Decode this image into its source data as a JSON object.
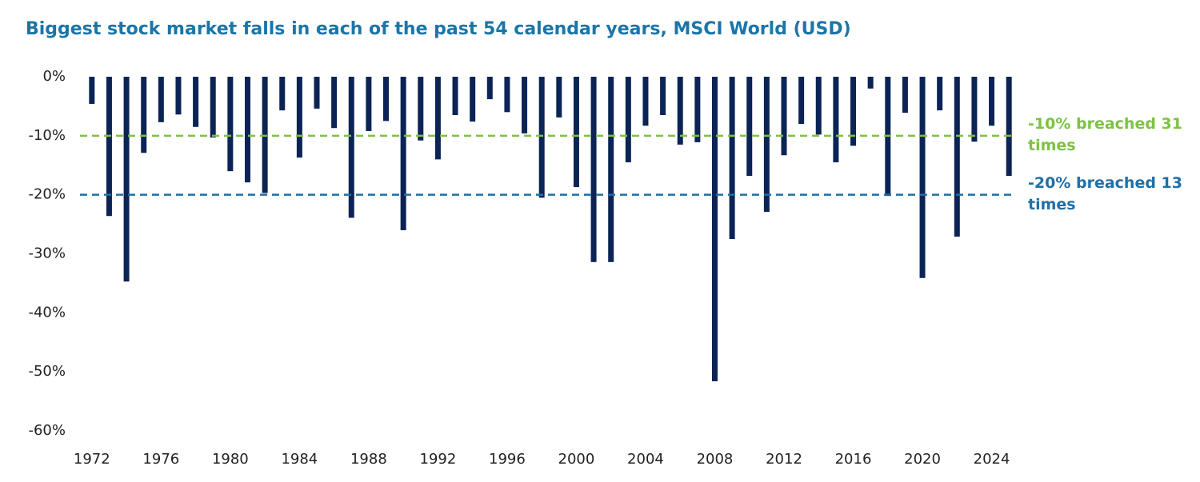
{
  "chart_data": {
    "type": "bar",
    "title": "Biggest stock market falls in each of the past 54 calendar years, MSCI World (USD)",
    "categories": [
      "1972",
      null,
      null,
      null,
      "1976",
      null,
      null,
      null,
      "1980",
      null,
      null,
      null,
      "1984",
      null,
      null,
      null,
      "1988",
      null,
      null,
      null,
      "1992",
      null,
      null,
      null,
      "1996",
      null,
      null,
      null,
      "2000",
      null,
      null,
      null,
      "2004",
      null,
      null,
      null,
      "2008",
      null,
      null,
      null,
      "2012",
      null,
      null,
      null,
      "2016",
      null,
      null,
      null,
      "2020",
      null,
      null,
      null,
      "2024",
      null
    ],
    "values": [
      -4.6,
      -23.6,
      -34.7,
      -12.9,
      -7.7,
      -6.4,
      -8.5,
      -10.3,
      -16.0,
      -17.9,
      -19.7,
      -5.7,
      -13.7,
      -5.4,
      -8.7,
      -23.9,
      -9.2,
      -7.5,
      -26.0,
      -10.8,
      -14.0,
      -6.5,
      -7.6,
      -3.8,
      -6.0,
      -9.6,
      -20.5,
      -6.9,
      -18.7,
      -31.4,
      -31.4,
      -14.5,
      -8.3,
      -6.5,
      -11.5,
      -11.1,
      -51.6,
      -27.5,
      -16.8,
      -22.9,
      -13.3,
      -8.0,
      -9.8,
      -14.5,
      -11.7,
      -2.0,
      -20.2,
      -6.1,
      -34.1,
      -5.7,
      -27.1,
      -11.0,
      -8.3,
      -16.8
    ],
    "color": "#0b2455",
    "ylim": [
      -60,
      0
    ],
    "yticks": [
      {
        "value": 0,
        "label": "0%"
      },
      {
        "value": -10,
        "label": "-10%"
      },
      {
        "value": -20,
        "label": "-20%"
      },
      {
        "value": -30,
        "label": "-30%"
      },
      {
        "value": -40,
        "label": "-40%"
      },
      {
        "value": -50,
        "label": "-50%"
      },
      {
        "value": -60,
        "label": "-60%"
      }
    ],
    "grid": false,
    "reference_lines": [
      {
        "value": -10,
        "color": "#7dc242",
        "label": "-10% breached 31 times"
      },
      {
        "value": -20,
        "color": "#1f6fa8",
        "label": "-20% breached 13 times"
      }
    ]
  }
}
